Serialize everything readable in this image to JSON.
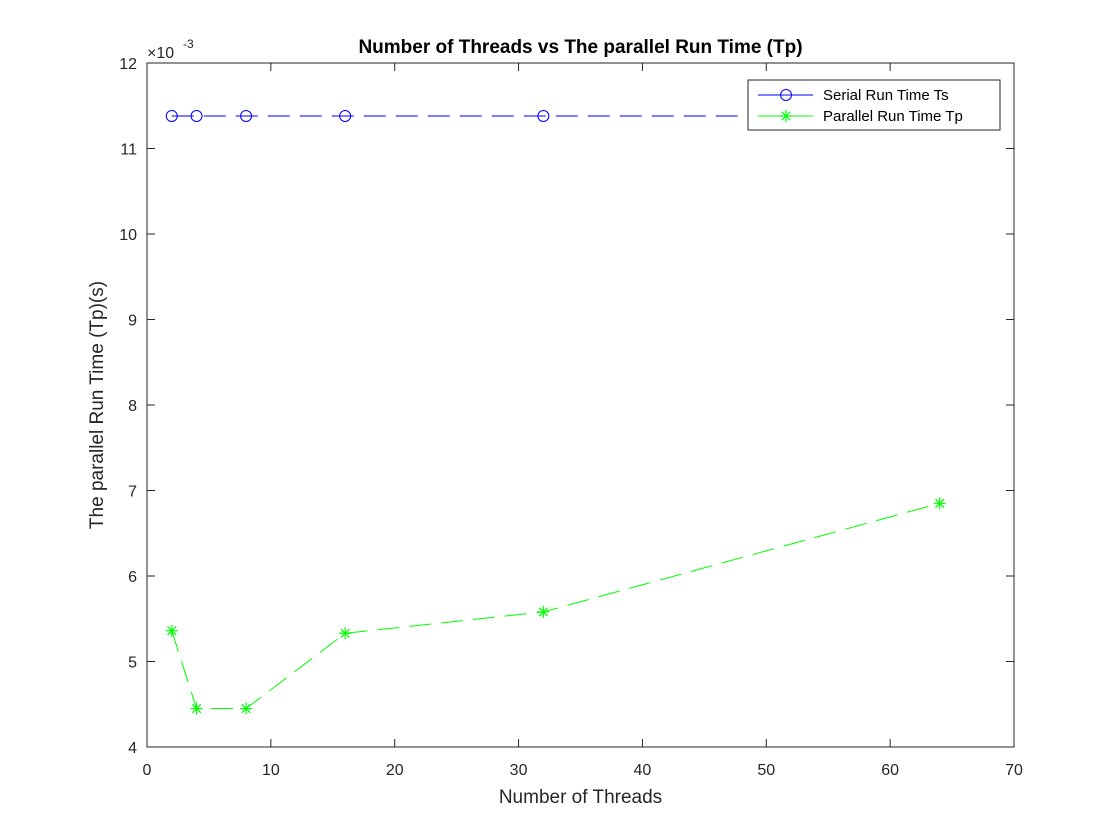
{
  "chart_data": {
    "type": "line",
    "title": "Number of Threads vs The parallel Run Time (Tp)",
    "xlabel": "Number of Threads",
    "ylabel": "The parallel Run Time (Tp)(s)",
    "xlim": [
      0,
      70
    ],
    "ylim": [
      4,
      12
    ],
    "x_ticks": [
      0,
      10,
      20,
      30,
      40,
      50,
      60,
      70
    ],
    "y_ticks": [
      4,
      5,
      6,
      7,
      8,
      9,
      10,
      11,
      12
    ],
    "y_exponent_base": "×10",
    "y_exponent_power": "-3",
    "grid": false,
    "legend_position": "top-right",
    "x": [
      2,
      4,
      8,
      16,
      32,
      64
    ],
    "series": [
      {
        "name": "Serial Run Time Ts",
        "values": [
          11.38,
          11.38,
          11.38,
          11.38,
          11.38,
          11.38
        ],
        "color": "#0000ff",
        "marker": "circle",
        "line_style": "dashed"
      },
      {
        "name": "Parallel Run Time Tp",
        "values": [
          5.36,
          4.45,
          4.45,
          5.33,
          5.58,
          6.85
        ],
        "color": "#00ff00",
        "marker": "asterisk",
        "line_style": "dashed"
      }
    ]
  }
}
